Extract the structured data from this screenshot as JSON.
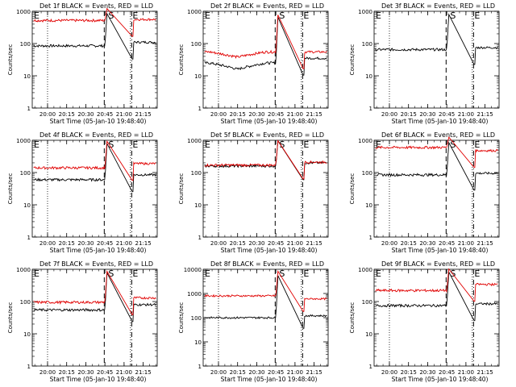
{
  "figure": {
    "x_tick_labels": [
      "20:00",
      "20:15",
      "20:30",
      "20:45",
      "21:00",
      "21:15"
    ],
    "y_tick_labels": [
      "1",
      "10",
      "100",
      "1000",
      "10000"
    ],
    "marker_S": "S",
    "marker_E": "E",
    "colors": {
      "events": "#000000",
      "lld": "#e00000",
      "axes": "#000000"
    }
  },
  "chart_data": [
    {
      "type": "line",
      "title": "Det 1f BLACK = Events, RED = LLD",
      "xlabel": "Start Time (05-Jan-10 19:48:40)",
      "ylabel": "Counts/sec",
      "yscale": "log",
      "ylim": [
        1,
        1000
      ],
      "y_ticks": [
        "1",
        "10",
        "100",
        "1000"
      ],
      "x_ticks": [
        "20:00",
        "20:15",
        "20:30",
        "20:45",
        "21:00",
        "21:15"
      ],
      "series": [
        {
          "name": "Events",
          "profile": "flat",
          "base": 85,
          "end": 110
        },
        {
          "name": "LLD",
          "profile": "flat",
          "base": 520,
          "end": 560
        }
      ],
      "markers": [
        {
          "label": "E",
          "t": "19:49"
        },
        {
          "label": "S",
          "t": "20:47"
        },
        {
          "label": "E",
          "t": "21:06"
        }
      ],
      "dotted_lines": [
        "20:00",
        "21:05"
      ]
    },
    {
      "type": "line",
      "title": "Det 2f BLACK = Events, RED = LLD",
      "xlabel": "Start Time (05-Jan-10 19:48:40)",
      "ylabel": "Counts/sec",
      "yscale": "log",
      "ylim": [
        1,
        1000
      ],
      "y_ticks": [
        "1",
        "10",
        "100",
        "1000"
      ],
      "x_ticks": [
        "20:00",
        "20:15",
        "20:30",
        "20:45",
        "21:00",
        "21:15"
      ],
      "series": [
        {
          "name": "Events",
          "profile": "dip",
          "base": 25,
          "low": 16,
          "end": 35
        },
        {
          "name": "LLD",
          "profile": "dip",
          "base": 55,
          "low": 38,
          "end": 55
        }
      ],
      "markers": [
        {
          "label": "E",
          "t": "19:49"
        },
        {
          "label": "S",
          "t": "20:47"
        },
        {
          "label": "E",
          "t": "21:06"
        }
      ],
      "dotted_lines": [
        "20:00",
        "21:05"
      ]
    },
    {
      "type": "line",
      "title": "Det 3f BLACK = Events, RED = LLD",
      "xlabel": "Start Time (05-Jan-10 19:48:40)",
      "ylabel": "Counts/sec",
      "yscale": "log",
      "ylim": [
        1,
        1000
      ],
      "y_ticks": [
        "1",
        "10",
        "100",
        "1000"
      ],
      "x_ticks": [
        "20:00",
        "20:15",
        "20:30",
        "20:45",
        "21:00",
        "21:15"
      ],
      "series": [
        {
          "name": "Events",
          "profile": "flat",
          "base": 65,
          "end": 75
        }
      ],
      "markers": [
        {
          "label": "E",
          "t": "19:49"
        },
        {
          "label": "S",
          "t": "20:47"
        },
        {
          "label": "E",
          "t": "21:06"
        }
      ],
      "dotted_lines": [
        "20:00",
        "21:05"
      ]
    },
    {
      "type": "line",
      "title": "Det 4f BLACK = Events, RED = LLD",
      "xlabel": "Start Time (05-Jan-10 19:48:40)",
      "ylabel": "Counts/sec",
      "yscale": "log",
      "ylim": [
        1,
        1000
      ],
      "y_ticks": [
        "1",
        "10",
        "100",
        "1000"
      ],
      "x_ticks": [
        "20:00",
        "20:15",
        "20:30",
        "20:45",
        "21:00",
        "21:15"
      ],
      "series": [
        {
          "name": "Events",
          "profile": "flat",
          "base": 60,
          "end": 85
        },
        {
          "name": "LLD",
          "profile": "flat",
          "base": 140,
          "end": 190
        }
      ],
      "markers": [
        {
          "label": "E",
          "t": "19:49"
        },
        {
          "label": "S",
          "t": "20:47"
        },
        {
          "label": "E",
          "t": "21:06"
        }
      ],
      "dotted_lines": [
        "20:00",
        "21:05"
      ]
    },
    {
      "type": "line",
      "title": "Det 5f BLACK = Events, RED = LLD",
      "xlabel": "Start Time (05-Jan-10 19:48:40)",
      "ylabel": "Counts/sec",
      "yscale": "log",
      "ylim": [
        1,
        1000
      ],
      "y_ticks": [
        "1",
        "10",
        "100",
        "1000"
      ],
      "x_ticks": [
        "20:00",
        "20:15",
        "20:30",
        "20:45",
        "21:00",
        "21:15"
      ],
      "series": [
        {
          "name": "Events",
          "profile": "flat",
          "base": 160,
          "end": 200
        },
        {
          "name": "LLD",
          "profile": "flat",
          "base": 170,
          "end": 210
        }
      ],
      "markers": [
        {
          "label": "E",
          "t": "19:49"
        },
        {
          "label": "S",
          "t": "20:47"
        },
        {
          "label": "E",
          "t": "21:06"
        }
      ],
      "dotted_lines": [
        "20:00",
        "21:05"
      ]
    },
    {
      "type": "line",
      "title": "Det 6f BLACK = Events, RED = LLD",
      "xlabel": "Start Time (05-Jan-10 19:48:40)",
      "ylabel": "Counts/sec",
      "yscale": "log",
      "ylim": [
        1,
        1000
      ],
      "y_ticks": [
        "1",
        "10",
        "100",
        "1000"
      ],
      "x_ticks": [
        "20:00",
        "20:15",
        "20:30",
        "20:45",
        "21:00",
        "21:15"
      ],
      "series": [
        {
          "name": "Events",
          "profile": "flat",
          "base": 85,
          "end": 95
        },
        {
          "name": "LLD",
          "profile": "flat",
          "base": 600,
          "end": 480
        }
      ],
      "markers": [
        {
          "label": "E",
          "t": "19:49"
        },
        {
          "label": "S",
          "t": "20:47"
        },
        {
          "label": "E",
          "t": "21:06"
        }
      ],
      "dotted_lines": [
        "20:00",
        "21:05"
      ]
    },
    {
      "type": "line",
      "title": "Det 7f BLACK = Events, RED = LLD",
      "xlabel": "Start Time (05-Jan-10 19:48:40)",
      "ylabel": "Counts/sec",
      "yscale": "log",
      "ylim": [
        1,
        1000
      ],
      "y_ticks": [
        "1",
        "10",
        "100",
        "1000"
      ],
      "x_ticks": [
        "20:00",
        "20:15",
        "20:30",
        "20:45",
        "21:00",
        "21:15"
      ],
      "series": [
        {
          "name": "Events",
          "profile": "flat",
          "base": 55,
          "end": 80
        },
        {
          "name": "LLD",
          "profile": "flat",
          "base": 95,
          "end": 130
        }
      ],
      "markers": [
        {
          "label": "E",
          "t": "19:49"
        },
        {
          "label": "S",
          "t": "20:47"
        },
        {
          "label": "E",
          "t": "21:06"
        }
      ],
      "dotted_lines": [
        "20:00",
        "21:05"
      ]
    },
    {
      "type": "line",
      "title": "Det 8f BLACK = Events, RED = LLD",
      "xlabel": "Start Time (05-Jan-10 19:48:40)",
      "ylabel": "Counts/sec",
      "yscale": "log",
      "ylim": [
        1,
        10000
      ],
      "y_ticks": [
        "1",
        "10",
        "100",
        "1000",
        "10000"
      ],
      "x_ticks": [
        "20:00",
        "20:15",
        "20:30",
        "20:45",
        "21:00",
        "21:15"
      ],
      "series": [
        {
          "name": "Events",
          "profile": "flat",
          "base": 100,
          "end": 120
        },
        {
          "name": "LLD",
          "profile": "flat",
          "base": 800,
          "end": 600
        }
      ],
      "markers": [
        {
          "label": "E",
          "t": "19:49"
        },
        {
          "label": "S",
          "t": "20:47"
        },
        {
          "label": "E",
          "t": "21:06"
        }
      ],
      "dotted_lines": [
        "20:00",
        "21:05"
      ]
    },
    {
      "type": "line",
      "title": "Det 9f BLACK = Events, RED = LLD",
      "xlabel": "Start Time (05-Jan-10 19:48:40)",
      "ylabel": "Counts/sec",
      "yscale": "log",
      "ylim": [
        1,
        1000
      ],
      "y_ticks": [
        "1",
        "10",
        "100",
        "1000"
      ],
      "x_ticks": [
        "20:00",
        "20:15",
        "20:30",
        "20:45",
        "21:00",
        "21:15"
      ],
      "series": [
        {
          "name": "Events",
          "profile": "flat",
          "base": 75,
          "end": 85
        },
        {
          "name": "LLD",
          "profile": "flat",
          "base": 220,
          "end": 340
        }
      ],
      "markers": [
        {
          "label": "E",
          "t": "19:49"
        },
        {
          "label": "S",
          "t": "20:47"
        },
        {
          "label": "E",
          "t": "21:06"
        }
      ],
      "dotted_lines": [
        "20:00",
        "21:05"
      ]
    }
  ]
}
